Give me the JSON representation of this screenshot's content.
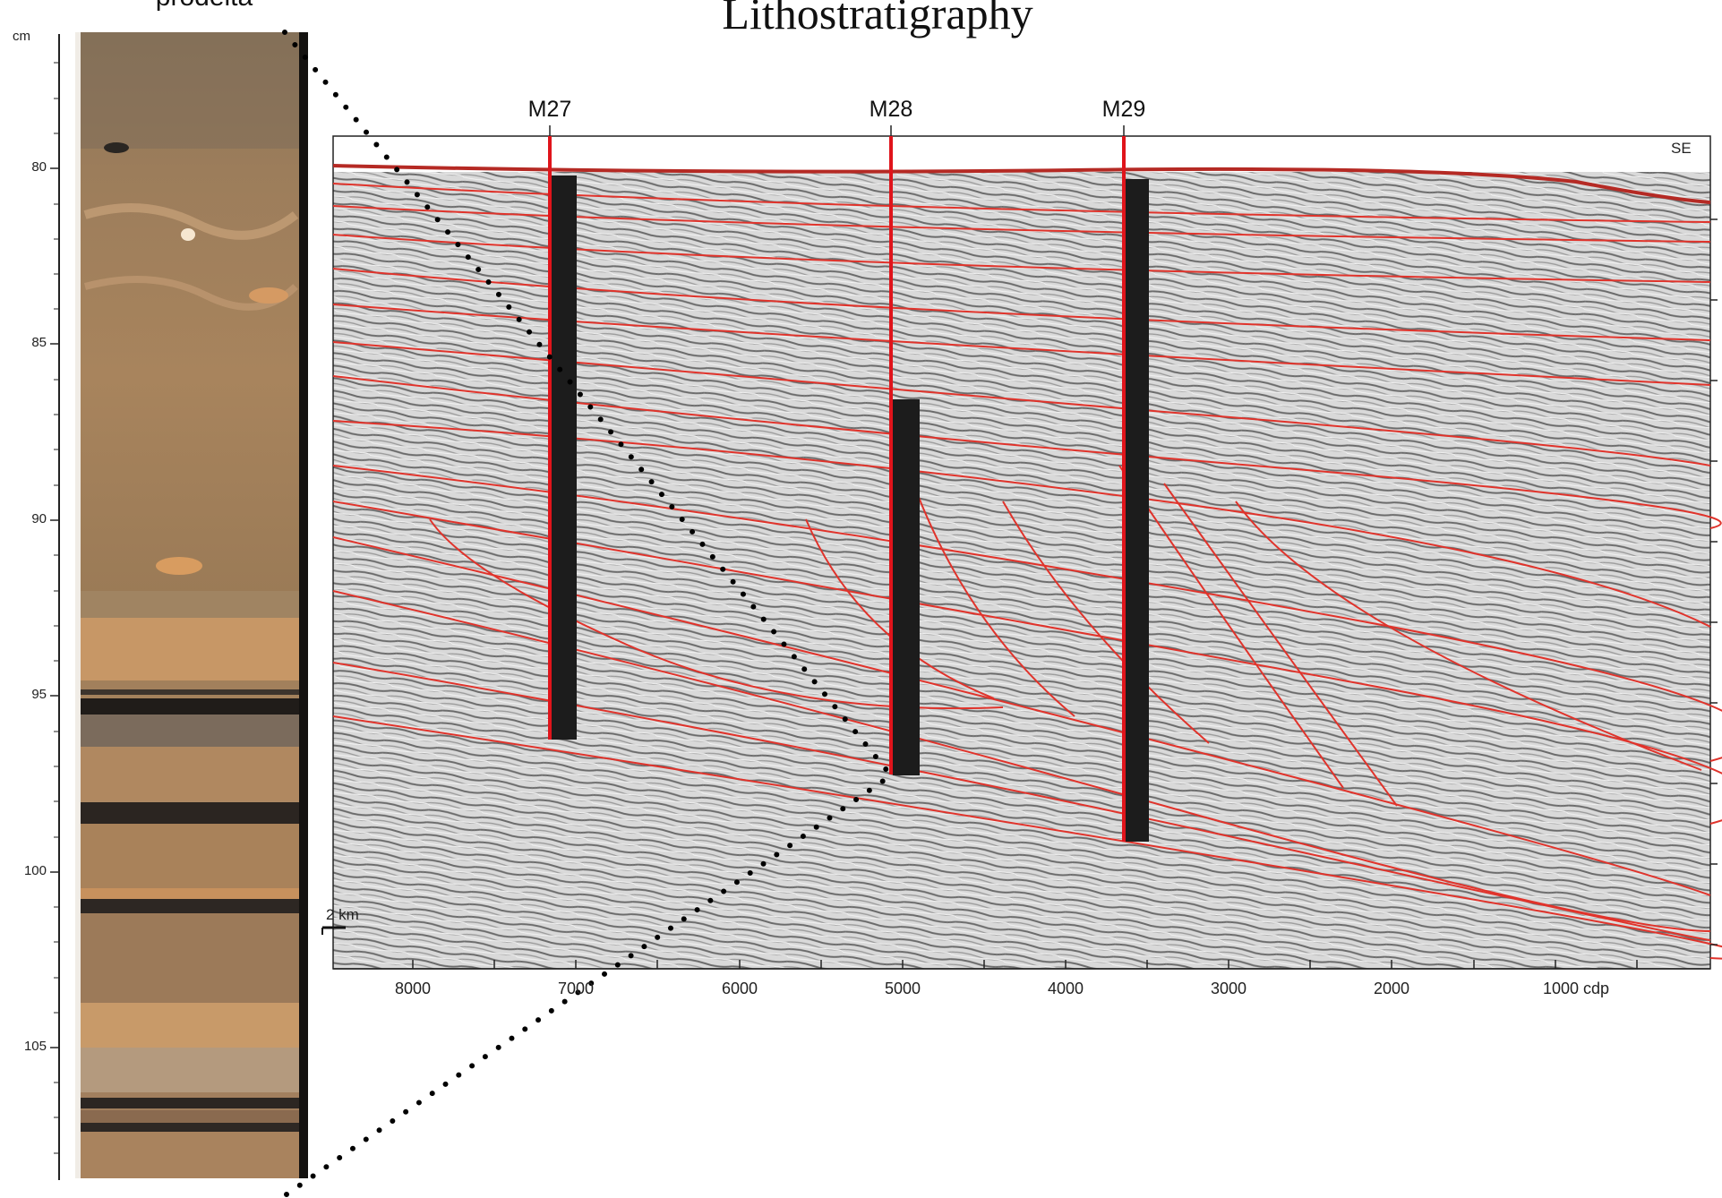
{
  "title": "Lithostratigraphy",
  "core": {
    "label": "prodelta",
    "unit": "cm",
    "depth_ticks": [
      "80",
      "85",
      "90",
      "95",
      "100",
      "105"
    ]
  },
  "section": {
    "wells": [
      "M27",
      "M28",
      "M29"
    ],
    "direction_label": "SE",
    "scale_label": "2 km",
    "cdp_ticks": [
      "8000",
      "7000",
      "6000",
      "5000",
      "4000",
      "3000",
      "2000",
      "1000 cdp"
    ]
  },
  "colors": {
    "horizon": "#e0332b",
    "well_line": "#e0141b",
    "core_base": "#a6825a",
    "core_dark": "#2f2a26",
    "zoom_line": "#000000"
  }
}
